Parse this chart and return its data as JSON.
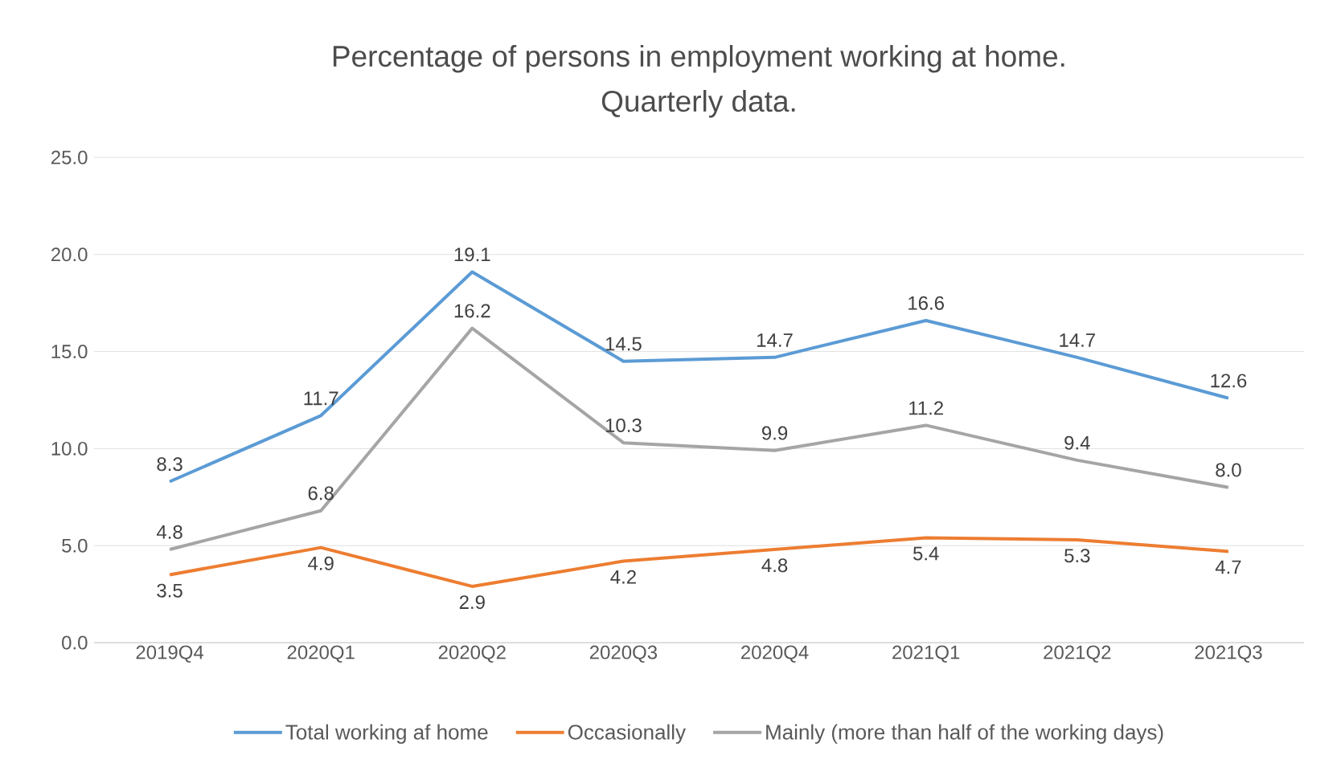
{
  "chart_data": {
    "type": "line",
    "title": "Percentage of persons in employment working at home.\nQuarterly data.",
    "categories": [
      "2019Q4",
      "2020Q1",
      "2020Q2",
      "2020Q3",
      "2020Q4",
      "2021Q1",
      "2021Q2",
      "2021Q3"
    ],
    "series": [
      {
        "name": "Total working af home",
        "color": "#5b9bd5",
        "values": [
          8.3,
          11.7,
          19.1,
          14.5,
          14.7,
          16.6,
          14.7,
          12.6
        ],
        "value_labels": [
          "8.3",
          "11.7",
          "19.1",
          "14.5",
          "14.7",
          "16.6",
          "14.7",
          "12.6"
        ]
      },
      {
        "name": "Occasionally",
        "color": "#ed7d31",
        "values": [
          3.5,
          4.9,
          2.9,
          4.2,
          4.8,
          5.4,
          5.3,
          4.7
        ],
        "value_labels": [
          "3.5",
          "4.9",
          "2.9",
          "4.2",
          "4.8",
          "5.4",
          "5.3",
          "4.7"
        ]
      },
      {
        "name": "Mainly (more than half of the working days)",
        "color": "#a5a5a5",
        "values": [
          4.8,
          6.8,
          16.2,
          10.3,
          9.9,
          11.2,
          9.4,
          8.0
        ],
        "value_labels": [
          "4.8",
          "6.8",
          "16.2",
          "10.3",
          "9.9",
          "11.2",
          "9.4",
          "8.0"
        ]
      }
    ],
    "ylim": [
      0,
      25
    ],
    "yticks": [
      {
        "value": 0,
        "label": "0.0"
      },
      {
        "value": 5,
        "label": "5.0"
      },
      {
        "value": 10,
        "label": "10.0"
      },
      {
        "value": 15,
        "label": "15.0"
      },
      {
        "value": 20,
        "label": "20.0"
      },
      {
        "value": 25,
        "label": "25.0"
      }
    ],
    "grid": "y",
    "legend": "bottom",
    "marker": "none",
    "line_style": "solid"
  }
}
